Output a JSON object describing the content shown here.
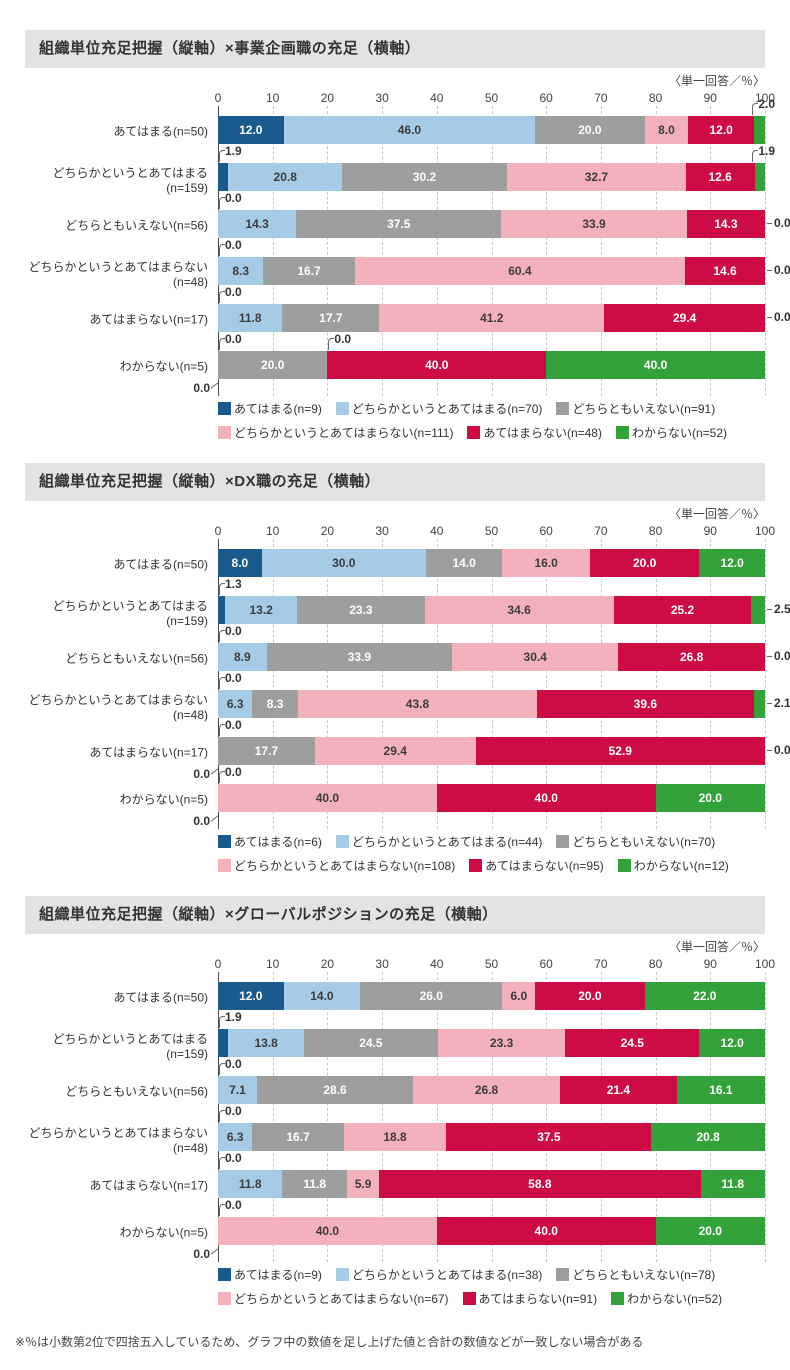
{
  "page": {
    "footnote": "※％は小数第2位で四捨五入しているため、グラフ中の数値を足し上げた値と合計の数値などが一致しない場合がある"
  },
  "colors": {
    "series": [
      "#1A5A8C",
      "#A6CBE7",
      "#9E9E9E",
      "#F3B1BC",
      "#CD0B45",
      "#33A23B"
    ],
    "title_bar_bg": "#E3E3E3",
    "value_text_dark": "#3C3C3C",
    "value_text_light": "#FFFFFF",
    "grid": "#C9C9C9",
    "axis": "#4A4A4A"
  },
  "series_value_text_style": [
    "light",
    "dark",
    "light",
    "dark",
    "light",
    "light"
  ],
  "chart_data": [
    {
      "type": "bar",
      "stacked": true,
      "orientation": "horizontal",
      "title": "組織単位充足把握（縦軸）×事業企画職の充足（横軸）",
      "unit_note": "〈単一回答／％〉",
      "xlim": [
        0,
        100
      ],
      "x_ticks": [
        0,
        10,
        20,
        30,
        40,
        50,
        60,
        70,
        80,
        90,
        100
      ],
      "grid": true,
      "series_names": [
        "あてはまる",
        "どちらかというとあてはまる",
        "どちらともいえない",
        "どちらかというとあてはまらない",
        "あてはまらない",
        "わからない"
      ],
      "legend": [
        "あてはまる(n=9)",
        "どちらかというとあてはまる(n=70)",
        "どちらともいえない(n=91)",
        "どちらかというとあてはまらない(n=111)",
        "あてはまらない(n=48)",
        "わからない(n=52)"
      ],
      "rows": [
        {
          "label": "あてはまる(n=50)",
          "values": [
            12.0,
            46.0,
            20.0,
            8.0,
            12.0,
            2.0
          ],
          "callouts": [
            {
              "text": "2.0",
              "pos": "top-right"
            }
          ]
        },
        {
          "label": "どちらかというとあてはまる\n(n=159)",
          "values": [
            1.9,
            20.8,
            30.2,
            32.7,
            12.6,
            1.9
          ],
          "callouts": [
            {
              "text": "1.9",
              "pos": "top-left"
            },
            {
              "text": "1.9",
              "pos": "top-right"
            }
          ]
        },
        {
          "label": "どちらともいえない(n=56)",
          "values": [
            0.0,
            14.3,
            37.5,
            33.9,
            14.3,
            0.0
          ],
          "callouts": [
            {
              "text": "0.0",
              "pos": "top-left"
            },
            {
              "text": "0.0",
              "pos": "right"
            }
          ]
        },
        {
          "label": "どちらかというとあてはまらない\n(n=48)",
          "values": [
            0.0,
            8.3,
            16.7,
            60.4,
            14.6,
            0.0
          ],
          "callouts": [
            {
              "text": "0.0",
              "pos": "top-left"
            },
            {
              "text": "0.0",
              "pos": "right"
            }
          ]
        },
        {
          "label": "あてはまらない(n=17)",
          "values": [
            0.0,
            11.8,
            17.7,
            41.2,
            29.4,
            0.0
          ],
          "callouts": [
            {
              "text": "0.0",
              "pos": "top-left"
            },
            {
              "text": "0.0",
              "pos": "right"
            }
          ]
        },
        {
          "label": "わからない(n=5)",
          "values": [
            0.0,
            0.0,
            20.0,
            0.0,
            40.0,
            40.0
          ],
          "callouts": [
            {
              "text": "0.0",
              "pos": "top-left"
            },
            {
              "text": "0.0",
              "pos": "top",
              "x": 20
            },
            {
              "text": "0.0",
              "pos": "bottom-left"
            }
          ]
        }
      ]
    },
    {
      "type": "bar",
      "stacked": true,
      "orientation": "horizontal",
      "title": "組織単位充足把握（縦軸）×DX職の充足（横軸）",
      "unit_note": "〈単一回答／％〉",
      "xlim": [
        0,
        100
      ],
      "x_ticks": [
        0,
        10,
        20,
        30,
        40,
        50,
        60,
        70,
        80,
        90,
        100
      ],
      "grid": true,
      "series_names": [
        "あてはまる",
        "どちらかというとあてはまる",
        "どちらともいえない",
        "どちらかというとあてはまらない",
        "あてはまらない",
        "わからない"
      ],
      "legend": [
        "あてはまる(n=6)",
        "どちらかというとあてはまる(n=44)",
        "どちらともいえない(n=70)",
        "どちらかというとあてはまらない(n=108)",
        "あてはまらない(n=95)",
        "わからない(n=12)"
      ],
      "rows": [
        {
          "label": "あてはまる(n=50)",
          "values": [
            8.0,
            30.0,
            14.0,
            16.0,
            20.0,
            12.0
          ],
          "callouts": []
        },
        {
          "label": "どちらかというとあてはまる\n(n=159)",
          "values": [
            1.3,
            13.2,
            23.3,
            34.6,
            25.2,
            2.5
          ],
          "callouts": [
            {
              "text": "1.3",
              "pos": "top-left"
            },
            {
              "text": "2.5",
              "pos": "right"
            }
          ]
        },
        {
          "label": "どちらともいえない(n=56)",
          "values": [
            0.0,
            8.9,
            33.9,
            30.4,
            26.8,
            0.0
          ],
          "callouts": [
            {
              "text": "0.0",
              "pos": "top-left"
            },
            {
              "text": "0.0",
              "pos": "right"
            }
          ]
        },
        {
          "label": "どちらかというとあてはまらない\n(n=48)",
          "values": [
            0.0,
            6.3,
            8.3,
            43.8,
            39.6,
            2.1
          ],
          "callouts": [
            {
              "text": "0.0",
              "pos": "top-left"
            },
            {
              "text": "2.1",
              "pos": "right"
            }
          ]
        },
        {
          "label": "あてはまらない(n=17)",
          "values": [
            0.0,
            0.0,
            17.7,
            29.4,
            52.9,
            0.0
          ],
          "callouts": [
            {
              "text": "0.0",
              "pos": "top-left"
            },
            {
              "text": "0.0",
              "pos": "bottom-left"
            },
            {
              "text": "0.0",
              "pos": "right"
            }
          ]
        },
        {
          "label": "わからない(n=5)",
          "values": [
            0.0,
            0.0,
            0.0,
            40.0,
            40.0,
            20.0
          ],
          "callouts": [
            {
              "text": "0.0",
              "pos": "top-left"
            },
            {
              "text": "0.0",
              "pos": "bottom-left"
            }
          ]
        }
      ]
    },
    {
      "type": "bar",
      "stacked": true,
      "orientation": "horizontal",
      "title": "組織単位充足把握（縦軸）×グローバルポジションの充足（横軸）",
      "unit_note": "〈単一回答／％〉",
      "xlim": [
        0,
        100
      ],
      "x_ticks": [
        0,
        10,
        20,
        30,
        40,
        50,
        60,
        70,
        80,
        90,
        100
      ],
      "grid": true,
      "series_names": [
        "あてはまる",
        "どちらかというとあてはまる",
        "どちらともいえない",
        "どちらかというとあてはまらない",
        "あてはまらない",
        "わからない"
      ],
      "legend": [
        "あてはまる(n=9)",
        "どちらかというとあてはまる(n=38)",
        "どちらともいえない(n=78)",
        "どちらかというとあてはまらない(n=67)",
        "あてはまらない(n=91)",
        "わからない(n=52)"
      ],
      "rows": [
        {
          "label": "あてはまる(n=50)",
          "values": [
            12.0,
            14.0,
            26.0,
            6.0,
            20.0,
            22.0
          ],
          "callouts": []
        },
        {
          "label": "どちらかというとあてはまる\n(n=159)",
          "values": [
            1.9,
            13.8,
            24.5,
            23.3,
            24.5,
            12.0
          ],
          "callouts": [
            {
              "text": "1.9",
              "pos": "top-left"
            }
          ]
        },
        {
          "label": "どちらともいえない(n=56)",
          "values": [
            0.0,
            7.1,
            28.6,
            26.8,
            21.4,
            16.1
          ],
          "callouts": [
            {
              "text": "0.0",
              "pos": "top-left"
            }
          ]
        },
        {
          "label": "どちらかというとあてはまらない\n(n=48)",
          "values": [
            0.0,
            6.3,
            16.7,
            18.8,
            37.5,
            20.8
          ],
          "callouts": [
            {
              "text": "0.0",
              "pos": "top-left"
            }
          ]
        },
        {
          "label": "あてはまらない(n=17)",
          "values": [
            0.0,
            11.8,
            11.8,
            5.9,
            58.8,
            11.8
          ],
          "callouts": [
            {
              "text": "0.0",
              "pos": "top-left"
            }
          ]
        },
        {
          "label": "わからない(n=5)",
          "values": [
            0.0,
            0.0,
            0.0,
            40.0,
            40.0,
            20.0
          ],
          "callouts": [
            {
              "text": "0.0",
              "pos": "top-left"
            },
            {
              "text": "0.0",
              "pos": "bottom-left"
            }
          ]
        }
      ]
    }
  ]
}
